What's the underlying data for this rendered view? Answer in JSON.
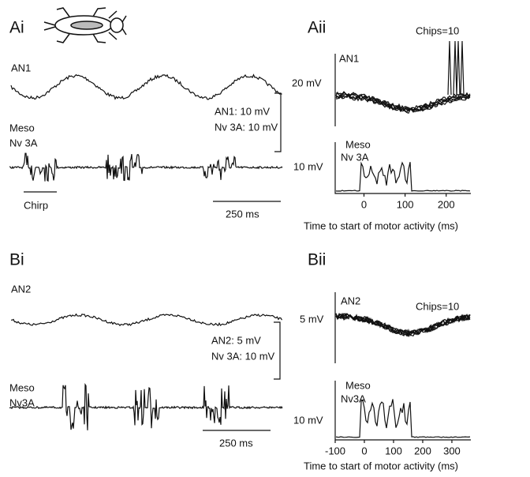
{
  "panels": [
    {
      "label": "Ai",
      "traces": [
        "AN1",
        "Meso",
        "Nv 3A"
      ],
      "scale": [
        "AN1: 10 mV",
        "Nv 3A: 10 mV"
      ],
      "bars": [
        "Chirp",
        "250 ms"
      ]
    },
    {
      "label": "Aii",
      "annotation": "Chips=10",
      "top": {
        "label": "AN1",
        "scale": "20 mV"
      },
      "bottom": {
        "label": [
          "Meso",
          "Nv 3A"
        ],
        "scale": "10 mV"
      },
      "x_axis": {
        "label": "Time to start of motor activity (ms)",
        "xlim": [
          -70,
          260
        ],
        "xticks": [
          0,
          100,
          200
        ]
      }
    },
    {
      "label": "Bi",
      "traces": [
        "AN2",
        "Meso",
        "Nv3A"
      ],
      "scale": [
        "AN2: 5 mV",
        "Nv 3A: 10 mV"
      ],
      "bars": [
        "250 ms"
      ]
    },
    {
      "label": "Bii",
      "annotation": "Chips=10",
      "top": {
        "label": "AN2",
        "scale": "5 mV"
      },
      "bottom": {
        "label": [
          "Meso",
          "Nv3A"
        ],
        "scale": "10 mV"
      },
      "x_axis": {
        "label": "Time to start of motor activity (ms)",
        "xlim": [
          -100,
          365
        ],
        "xticks": [
          -100,
          0,
          100,
          200,
          300
        ]
      }
    }
  ]
}
